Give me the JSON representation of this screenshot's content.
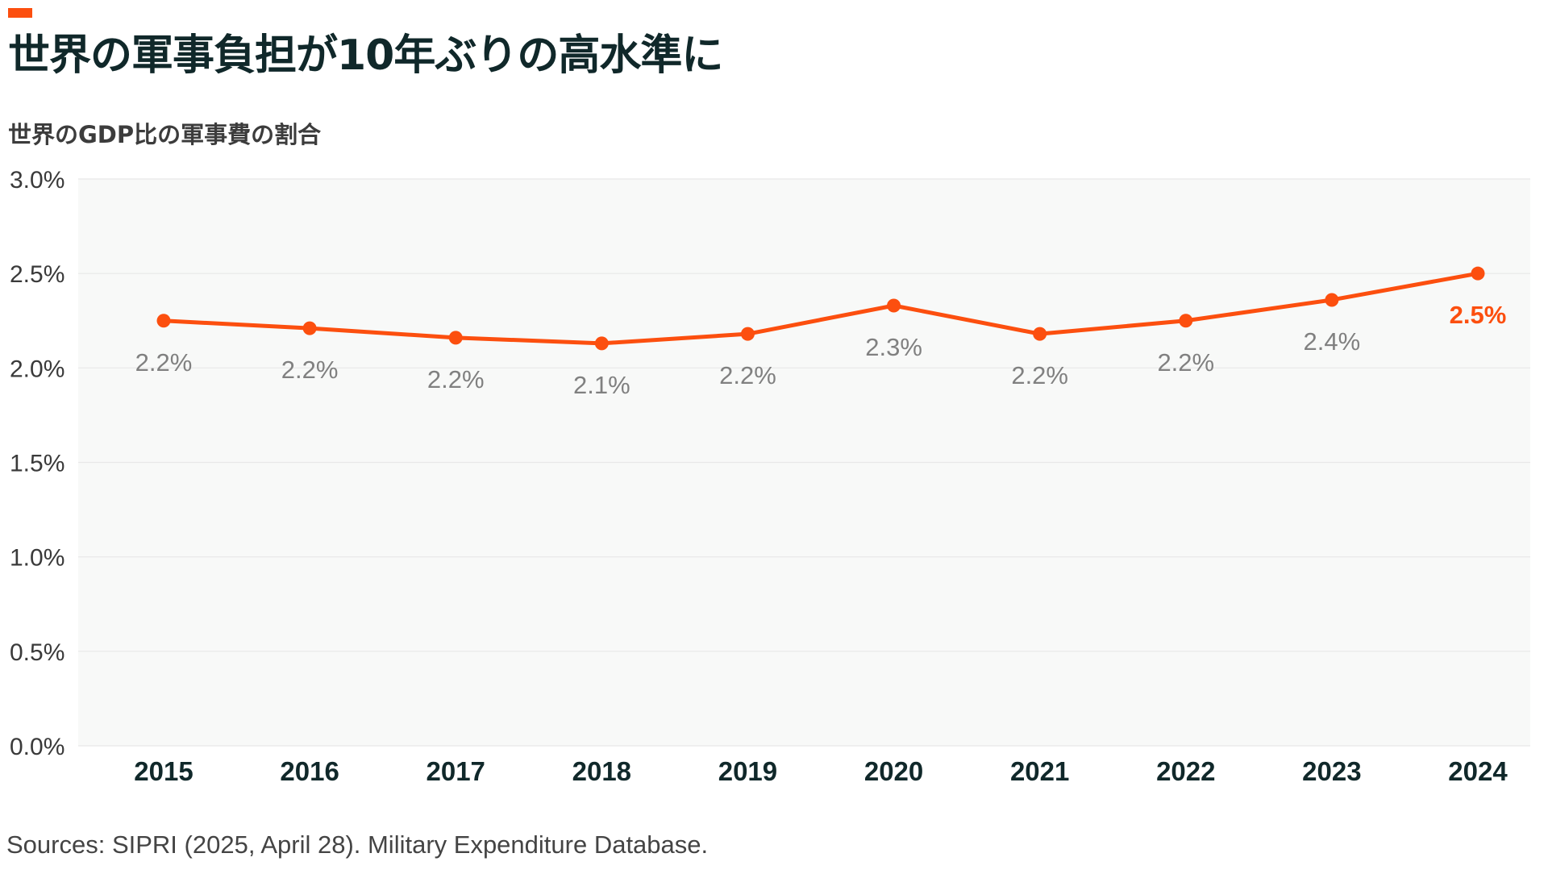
{
  "header": {
    "title": "世界の軍事負担が10年ぶりの高水準に",
    "subtitle": "世界のGDP比の軍事費の割合"
  },
  "footer": {
    "source": "Sources: SIPRI (2025, April 28). Military Expenditure Database."
  },
  "colors": {
    "accent": "#fc4f0f",
    "line": "#fc4f0f",
    "plot_background": "#f8f9f8",
    "gridline": "#e8e8e8",
    "label_grey": "#808080"
  },
  "chart_data": {
    "type": "line",
    "title": "",
    "xlabel": "",
    "ylabel": "",
    "categories": [
      "2015",
      "2016",
      "2017",
      "2018",
      "2019",
      "2020",
      "2021",
      "2022",
      "2023",
      "2024"
    ],
    "series": [
      {
        "values": [
          2.25,
          2.21,
          2.16,
          2.13,
          2.18,
          2.33,
          2.18,
          2.25,
          2.36,
          2.5
        ],
        "data_labels": [
          "2.2%",
          "2.2%",
          "2.2%",
          "2.1%",
          "2.2%",
          "2.3%",
          "2.2%",
          "2.2%",
          "2.4%",
          "2.5%"
        ]
      }
    ],
    "ylim": [
      0,
      3.0
    ],
    "yticks": [
      0,
      0.5,
      1.0,
      1.5,
      2.0,
      2.5,
      3.0
    ],
    "ytick_labels": [
      "0.0%",
      "0.5%",
      "1.0%",
      "1.5%",
      "2.0%",
      "2.5%",
      "3.0%"
    ],
    "grid": true,
    "legend": "none"
  }
}
